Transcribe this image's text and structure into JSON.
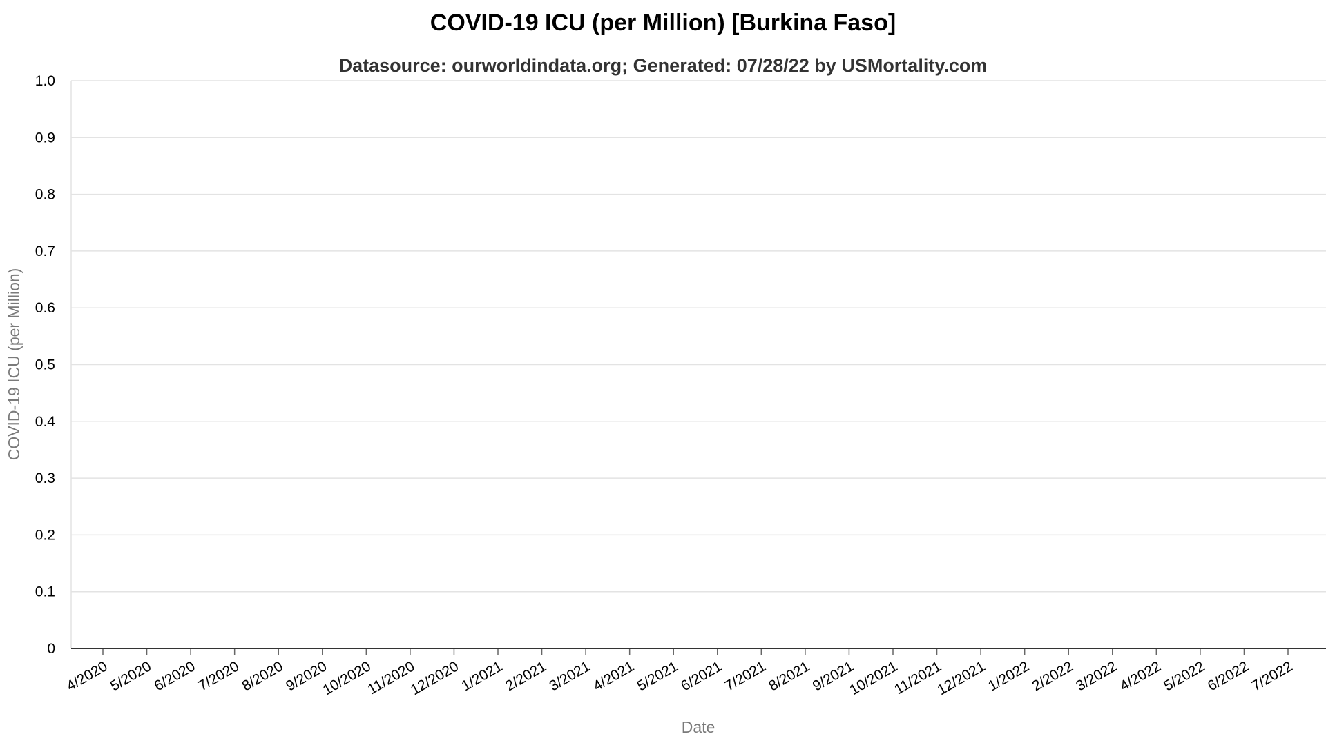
{
  "chart_data": {
    "type": "line",
    "title": "COVID-19 ICU (per Million) [Burkina Faso]",
    "subtitle": "Datasource: ourworldindata.org; Generated: 07/28/22 by USMortality.com",
    "xlabel": "Date",
    "ylabel": "COVID-19 ICU (per Million)",
    "ylim": [
      0,
      1.0
    ],
    "y_ticks": [
      "0",
      "0.1",
      "0.2",
      "0.3",
      "0.4",
      "0.5",
      "0.6",
      "0.7",
      "0.8",
      "0.9",
      "1.0"
    ],
    "categories": [
      "4/2020",
      "5/2020",
      "6/2020",
      "7/2020",
      "8/2020",
      "9/2020",
      "10/2020",
      "11/2020",
      "12/2020",
      "1/2021",
      "2/2021",
      "3/2021",
      "4/2021",
      "5/2021",
      "6/2021",
      "7/2021",
      "8/2021",
      "9/2021",
      "10/2021",
      "11/2021",
      "12/2021",
      "1/2022",
      "2/2022",
      "3/2022",
      "4/2022",
      "5/2022",
      "6/2022",
      "7/2022"
    ],
    "series": [],
    "grid": true
  }
}
